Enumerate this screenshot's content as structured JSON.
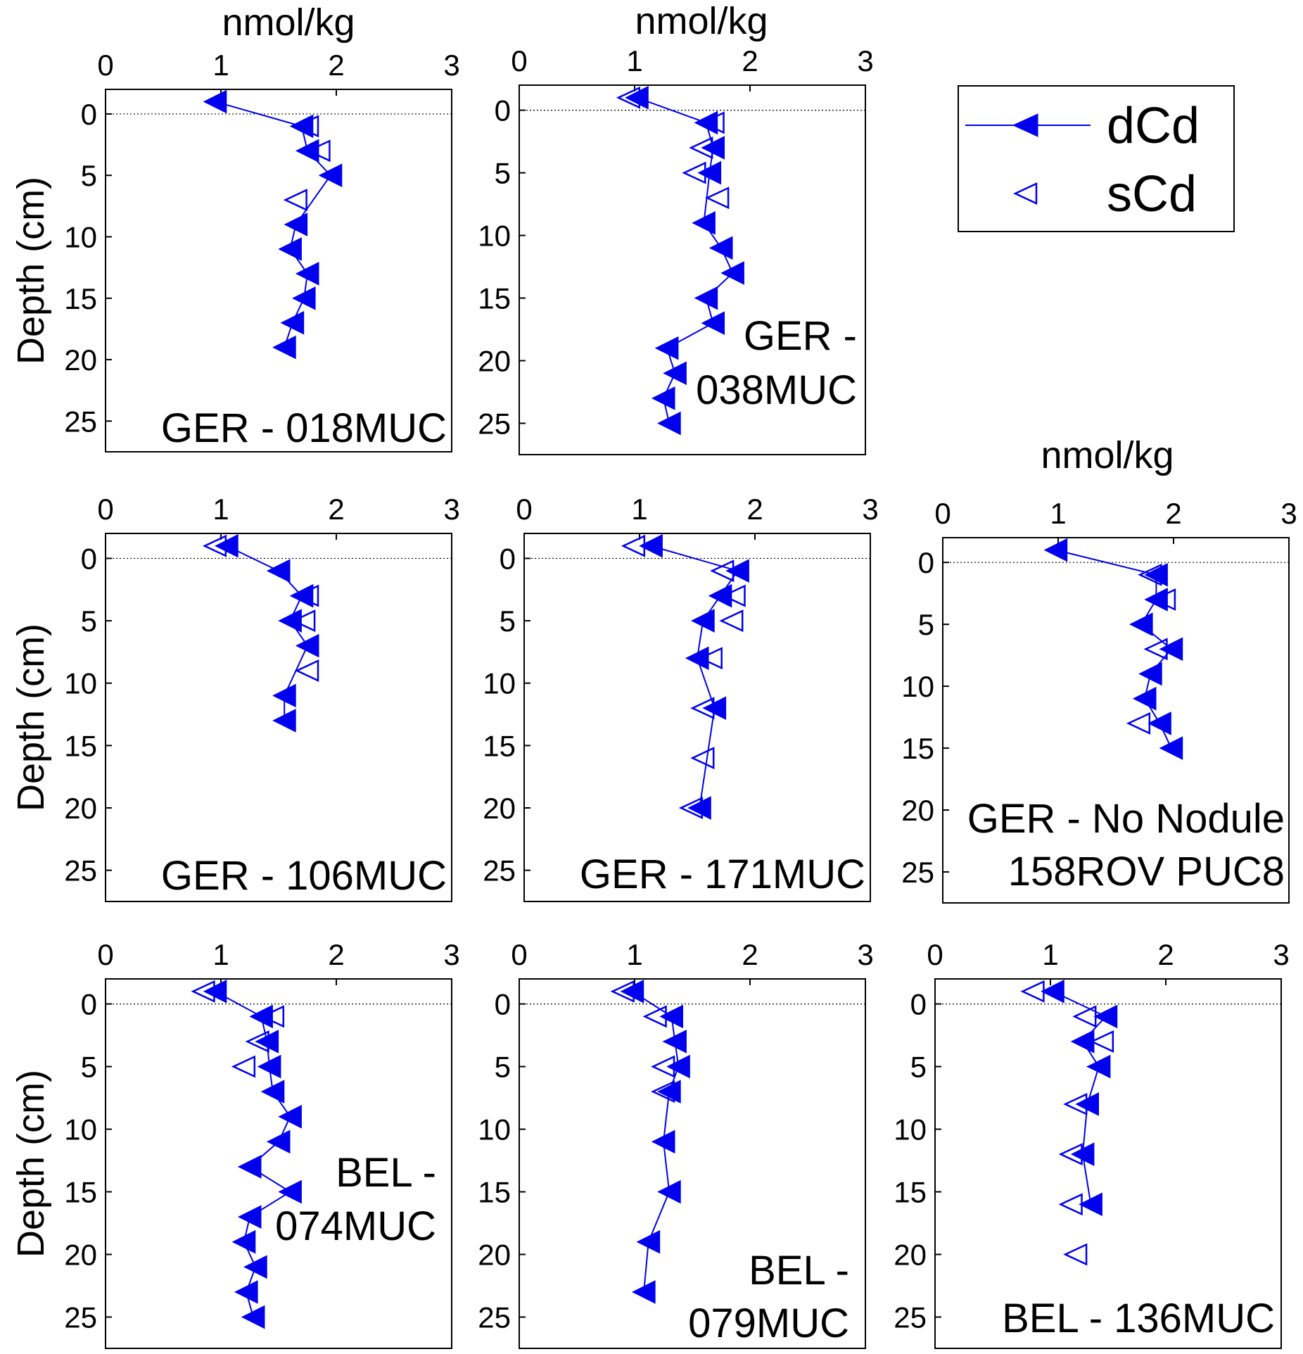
{
  "colors": {
    "series": "#0000ee",
    "axis": "#000000",
    "zero_line": "#000000"
  },
  "legend": {
    "placement": "top-right",
    "entries": [
      {
        "label": "dCd",
        "marker": "filled-left-triangle",
        "line": true
      },
      {
        "label": "sCd",
        "marker": "open-left-triangle",
        "line": false
      }
    ]
  },
  "chart_data": [
    {
      "type": "line",
      "title_lines": [
        "GER - 018MUC"
      ],
      "unit_label": "nmol/kg",
      "ylabel": "Depth (cm)",
      "xlim": [
        0,
        3
      ],
      "x_ticks": [
        "0",
        "1",
        "2",
        "3"
      ],
      "ylim": [
        27.5,
        -2
      ],
      "y_ticks": [
        "0",
        "5",
        "10",
        "15",
        "20",
        "25"
      ],
      "zero_line": true,
      "grid": false,
      "series": [
        {
          "name": "dCd",
          "points": [
            [
              0.95,
              -1
            ],
            [
              1.7,
              1
            ],
            [
              1.75,
              3
            ],
            [
              1.95,
              5
            ],
            [
              1.65,
              9
            ],
            [
              1.6,
              11
            ],
            [
              1.75,
              13
            ],
            [
              1.72,
              15
            ],
            [
              1.62,
              17
            ],
            [
              1.55,
              19
            ]
          ]
        },
        {
          "name": "sCd",
          "points": [
            [
              1.75,
              1
            ],
            [
              1.85,
              3
            ],
            [
              1.65,
              7
            ]
          ]
        }
      ]
    },
    {
      "type": "line",
      "title_lines": [
        "GER -",
        "038MUC"
      ],
      "unit_label": "nmol/kg",
      "ylabel": "",
      "xlim": [
        0,
        3
      ],
      "x_ticks": [
        "0",
        "1",
        "2",
        "3"
      ],
      "ylim": [
        27.5,
        -2
      ],
      "y_ticks": [
        "0",
        "5",
        "10",
        "15",
        "20",
        "25"
      ],
      "zero_line": true,
      "grid": false,
      "series": [
        {
          "name": "dCd",
          "points": [
            [
              1.02,
              -1
            ],
            [
              1.62,
              1
            ],
            [
              1.68,
              3
            ],
            [
              1.65,
              5
            ],
            [
              1.6,
              9
            ],
            [
              1.75,
              11
            ],
            [
              1.85,
              13
            ],
            [
              1.62,
              15
            ],
            [
              1.68,
              17
            ],
            [
              1.28,
              19
            ],
            [
              1.35,
              21
            ],
            [
              1.25,
              23
            ],
            [
              1.3,
              25
            ]
          ]
        },
        {
          "name": "sCd",
          "points": [
            [
              0.95,
              -1
            ],
            [
              1.68,
              1
            ],
            [
              1.58,
              3
            ],
            [
              1.52,
              5
            ],
            [
              1.72,
              7
            ]
          ]
        }
      ]
    },
    {
      "type": "line",
      "title_lines": [
        "GER - 106MUC"
      ],
      "unit_label": "",
      "ylabel": "Depth (cm)",
      "xlim": [
        0,
        3
      ],
      "x_ticks": [
        "0",
        "1",
        "2",
        "3"
      ],
      "ylim": [
        27.5,
        -2
      ],
      "y_ticks": [
        "0",
        "5",
        "10",
        "15",
        "20",
        "25"
      ],
      "zero_line": true,
      "grid": false,
      "series": [
        {
          "name": "dCd",
          "points": [
            [
              1.05,
              -1
            ],
            [
              1.5,
              1
            ],
            [
              1.7,
              3
            ],
            [
              1.6,
              5
            ],
            [
              1.75,
              7
            ],
            [
              1.55,
              11
            ],
            [
              1.55,
              13
            ]
          ]
        },
        {
          "name": "sCd",
          "points": [
            [
              0.95,
              -1
            ],
            [
              1.75,
              3
            ],
            [
              1.72,
              5
            ],
            [
              1.75,
              9
            ]
          ]
        }
      ]
    },
    {
      "type": "line",
      "title_lines": [
        "GER - 171MUC"
      ],
      "unit_label": "",
      "ylabel": "",
      "xlim": [
        0,
        3
      ],
      "x_ticks": [
        "0",
        "1",
        "2",
        "3"
      ],
      "ylim": [
        27.5,
        -2
      ],
      "y_ticks": [
        "0",
        "5",
        "10",
        "15",
        "20",
        "25"
      ],
      "zero_line": true,
      "grid": false,
      "series": [
        {
          "name": "dCd",
          "points": [
            [
              1.1,
              -1
            ],
            [
              1.85,
              1
            ],
            [
              1.7,
              3
            ],
            [
              1.55,
              5
            ],
            [
              1.5,
              8
            ],
            [
              1.65,
              12
            ],
            [
              1.52,
              20
            ]
          ]
        },
        {
          "name": "sCd",
          "points": [
            [
              0.95,
              -1
            ],
            [
              1.72,
              1
            ],
            [
              1.82,
              3
            ],
            [
              1.8,
              5
            ],
            [
              1.62,
              8
            ],
            [
              1.55,
              12
            ],
            [
              1.55,
              16
            ],
            [
              1.45,
              20
            ]
          ]
        }
      ]
    },
    {
      "type": "line",
      "title_lines": [
        "GER - No Nodule",
        "158ROV PUC8"
      ],
      "unit_label": "nmol/kg",
      "ylabel": "",
      "xlim": [
        0,
        3
      ],
      "x_ticks": [
        "0",
        "1",
        "2",
        "3"
      ],
      "ylim": [
        27.5,
        -2
      ],
      "y_ticks": [
        "0",
        "5",
        "10",
        "15",
        "20",
        "25"
      ],
      "zero_line": true,
      "grid": false,
      "series": [
        {
          "name": "dCd",
          "points": [
            [
              0.98,
              -1
            ],
            [
              1.85,
              1
            ],
            [
              1.85,
              3
            ],
            [
              1.72,
              5
            ],
            [
              1.98,
              7
            ],
            [
              1.8,
              9
            ],
            [
              1.75,
              11
            ],
            [
              1.88,
              13
            ],
            [
              1.98,
              15
            ]
          ]
        },
        {
          "name": "sCd",
          "points": [
            [
              1.8,
              1
            ],
            [
              1.92,
              3
            ],
            [
              1.85,
              7
            ],
            [
              1.7,
              13
            ]
          ]
        }
      ]
    },
    {
      "type": "line",
      "title_lines": [
        "BEL -",
        "074MUC"
      ],
      "unit_label": "",
      "ylabel": "Depth (cm)",
      "xlim": [
        0,
        3
      ],
      "x_ticks": [
        "0",
        "1",
        "2",
        "3"
      ],
      "ylim": [
        27.5,
        -2
      ],
      "y_ticks": [
        "0",
        "5",
        "10",
        "15",
        "20",
        "25"
      ],
      "zero_line": true,
      "grid": false,
      "series": [
        {
          "name": "dCd",
          "points": [
            [
              0.95,
              -1
            ],
            [
              1.35,
              1
            ],
            [
              1.4,
              3
            ],
            [
              1.42,
              5
            ],
            [
              1.45,
              7
            ],
            [
              1.6,
              9
            ],
            [
              1.5,
              11
            ],
            [
              1.25,
              13
            ],
            [
              1.6,
              15
            ],
            [
              1.25,
              17
            ],
            [
              1.2,
              19
            ],
            [
              1.3,
              21
            ],
            [
              1.22,
              23
            ],
            [
              1.28,
              25
            ]
          ]
        },
        {
          "name": "sCd",
          "points": [
            [
              0.85,
              -1
            ],
            [
              1.45,
              1
            ],
            [
              1.32,
              3
            ],
            [
              1.2,
              5
            ]
          ]
        }
      ]
    },
    {
      "type": "line",
      "title_lines": [
        "BEL -",
        "079MUC"
      ],
      "unit_label": "",
      "ylabel": "",
      "xlim": [
        0,
        3
      ],
      "x_ticks": [
        "0",
        "1",
        "2",
        "3"
      ],
      "ylim": [
        27.5,
        -2
      ],
      "y_ticks": [
        "0",
        "5",
        "10",
        "15",
        "20",
        "25"
      ],
      "zero_line": true,
      "grid": false,
      "series": [
        {
          "name": "dCd",
          "points": [
            [
              0.98,
              -1
            ],
            [
              1.32,
              1
            ],
            [
              1.35,
              3
            ],
            [
              1.38,
              5
            ],
            [
              1.3,
              7
            ],
            [
              1.25,
              11
            ],
            [
              1.3,
              15
            ],
            [
              1.12,
              19
            ],
            [
              1.08,
              23
            ]
          ]
        },
        {
          "name": "sCd",
          "points": [
            [
              0.9,
              -1
            ],
            [
              1.18,
              1
            ],
            [
              1.35,
              3
            ],
            [
              1.25,
              5
            ],
            [
              1.25,
              7
            ]
          ]
        }
      ]
    },
    {
      "type": "line",
      "title_lines": [
        "BEL - 136MUC"
      ],
      "unit_label": "",
      "ylabel": "",
      "xlim": [
        0,
        3
      ],
      "x_ticks": [
        "0",
        "1",
        "2",
        "3"
      ],
      "ylim": [
        27.5,
        -2
      ],
      "y_ticks": [
        "0",
        "5",
        "10",
        "15",
        "20",
        "25"
      ],
      "zero_line": true,
      "grid": false,
      "series": [
        {
          "name": "dCd",
          "points": [
            [
              1.02,
              -1
            ],
            [
              1.48,
              1
            ],
            [
              1.28,
              3
            ],
            [
              1.42,
              5
            ],
            [
              1.32,
              8
            ],
            [
              1.28,
              12
            ],
            [
              1.35,
              16
            ]
          ]
        },
        {
          "name": "sCd",
          "points": [
            [
              0.85,
              -1
            ],
            [
              1.3,
              1
            ],
            [
              1.45,
              3
            ],
            [
              1.42,
              5
            ],
            [
              1.22,
              8
            ],
            [
              1.18,
              12
            ],
            [
              1.18,
              16
            ],
            [
              1.22,
              20
            ]
          ]
        }
      ]
    }
  ]
}
